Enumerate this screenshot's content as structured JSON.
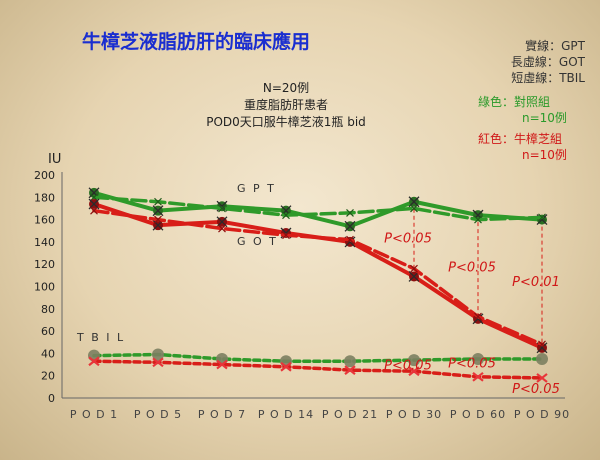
{
  "chart_data": {
    "type": "line",
    "title": "牛樟芝液脂肪肝的臨床應用",
    "ylabel": "IU",
    "ylim": [
      0,
      200
    ],
    "yticks": [
      0,
      20,
      40,
      60,
      80,
      100,
      120,
      140,
      160,
      180,
      200
    ],
    "categories": [
      "P O D 1",
      "P O D 5",
      "P O D 7",
      "P O D 14",
      "P O D 21",
      "P O D 30",
      "P O D 60",
      "P O D 90"
    ],
    "notes": [
      "N=20例",
      "重度脂肪肝患者",
      "POD0天口服牛樟芝液1瓶 bid"
    ],
    "legend": {
      "lines": [
        "實線：GPT",
        "長虛線：GOT",
        "短虛線：TBIL"
      ],
      "green": [
        "綠色：對照組",
        "n=10例"
      ],
      "red": [
        "紅色：牛樟芝組",
        "n=10例"
      ]
    },
    "series_labels": {
      "gpt": "G P T",
      "got": "G O T",
      "tbil": "T B I L"
    },
    "colors": {
      "green": "#2f9a2a",
      "red": "#d81e18"
    },
    "series": [
      {
        "name": "綠色 GPT",
        "style": "solid",
        "color": "green",
        "values": [
          184,
          168,
          172,
          168,
          154,
          176,
          164,
          160
        ]
      },
      {
        "name": "綠色 GOT",
        "style": "long-dash",
        "color": "green",
        "values": [
          180,
          176,
          170,
          164,
          166,
          170,
          160,
          162
        ]
      },
      {
        "name": "綠色 TBIL",
        "style": "short-dash",
        "color": "green",
        "values": [
          38,
          39,
          35,
          33,
          33,
          34,
          35,
          35
        ]
      },
      {
        "name": "紅色 GPT",
        "style": "solid",
        "color": "red",
        "values": [
          174,
          155,
          158,
          148,
          140,
          109,
          71,
          45
        ]
      },
      {
        "name": "紅色 GOT",
        "style": "long-dash",
        "color": "red",
        "values": [
          168,
          160,
          152,
          146,
          142,
          116,
          73,
          48
        ]
      },
      {
        "name": "紅色 TBIL",
        "style": "short-dash",
        "color": "red",
        "values": [
          33,
          32,
          30,
          28,
          25,
          24,
          19,
          18
        ]
      }
    ],
    "p_values": [
      {
        "text": "P<0.05",
        "category": 5,
        "value": 143
      },
      {
        "text": "P<0.05",
        "category": 6,
        "value": 117
      },
      {
        "text": "P<0.01",
        "category": 7,
        "value": 104
      },
      {
        "text": "P<0.05",
        "category": 5,
        "value": 29
      },
      {
        "text": "P<0.05",
        "category": 6,
        "value": 31
      },
      {
        "text": "P<0.05",
        "category": 7,
        "value": 8
      }
    ]
  }
}
